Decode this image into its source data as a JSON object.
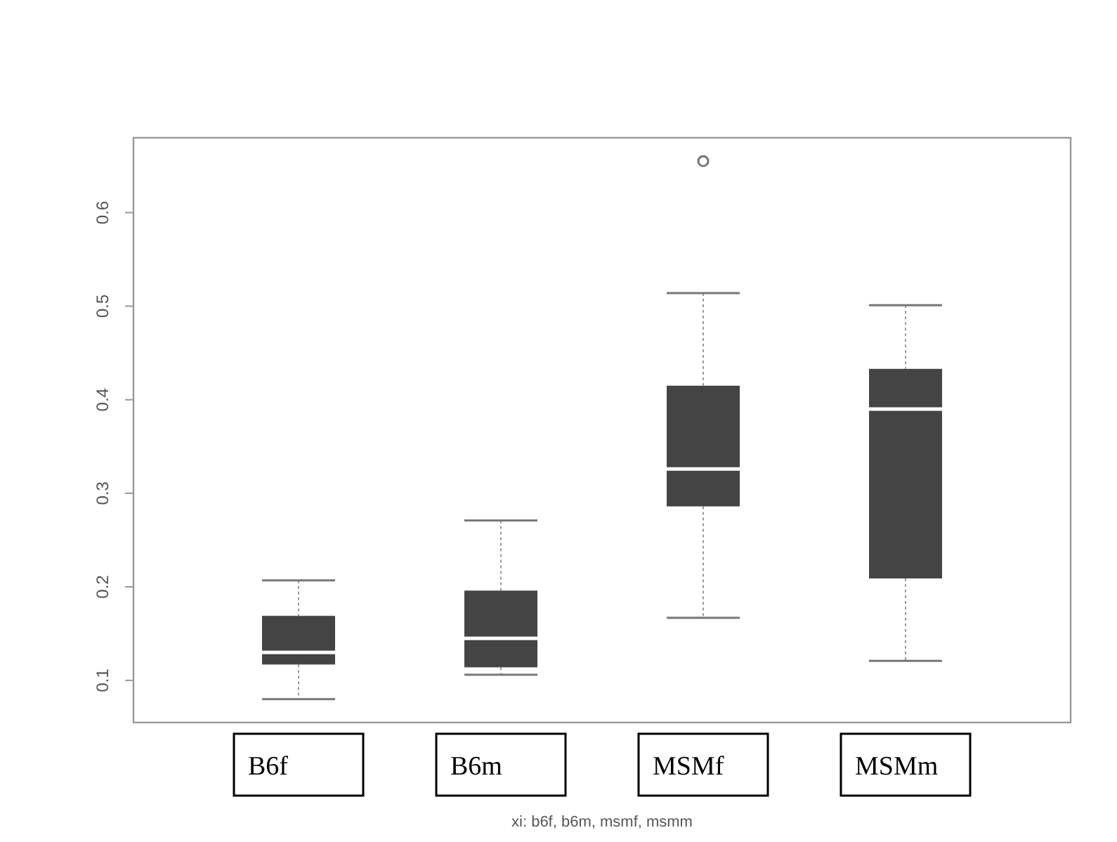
{
  "chart_data": {
    "type": "box",
    "categories": [
      "B6f",
      "B6m",
      "MSMf",
      "MSMm"
    ],
    "xlabel": "xi: b6f, b6m, msmf, msmm",
    "color": "#444444",
    "boxes": [
      {
        "low": 0.08,
        "q1": 0.117,
        "median": 0.13,
        "q3": 0.169,
        "high": 0.207
      },
      {
        "low": 0.106,
        "q1": 0.114,
        "median": 0.145,
        "q3": 0.196,
        "high": 0.271
      },
      {
        "low": 0.167,
        "q1": 0.286,
        "median": 0.326,
        "q3": 0.415,
        "high": 0.514,
        "outliers": [
          0.655
        ]
      },
      {
        "low": 0.121,
        "q1": 0.209,
        "median": 0.39,
        "q3": 0.433,
        "high": 0.501
      }
    ],
    "ylim": [
      0.055,
      0.68
    ],
    "yticks": [
      0.1,
      0.2,
      0.3,
      0.4,
      0.5,
      0.6
    ],
    "grid": false
  }
}
